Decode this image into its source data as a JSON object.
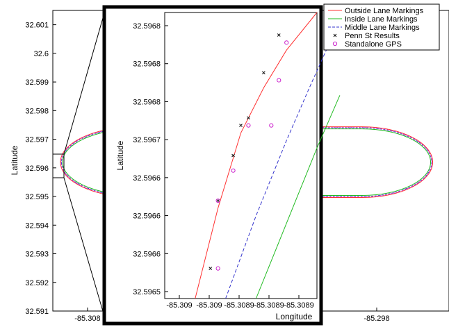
{
  "chart_data": [
    {
      "type": "line",
      "role": "main",
      "ylabel": "Latitude",
      "yticks": [
        "32.601",
        "32.6",
        "32.599",
        "32.598",
        "32.597",
        "32.596",
        "32.595",
        "32.594",
        "32.593",
        "32.592",
        "32.591"
      ],
      "xticks": [
        "-85.308",
        "-85.298"
      ],
      "ylim": [
        32.591,
        32.6015
      ],
      "xlim": [
        -85.3092,
        -85.2955
      ],
      "track": {
        "center_lat": 32.5962,
        "half_width_lat": 0.0012,
        "west_turn_lon": -85.3089,
        "east_turn_lon": -85.2961,
        "straight_west_lon": -85.3063,
        "straight_east_lon": -85.2985
      },
      "grid": false
    },
    {
      "type": "line",
      "role": "zoom-inset",
      "xlabel": "Longitude",
      "ylabel": "Latitude",
      "xticks": [
        "-85.309",
        "-85.309",
        "-85.3089",
        "-85.3089",
        "-85.3089"
      ],
      "yticks": [
        "32.5968",
        "32.5968",
        "32.5968",
        "32.5967",
        "32.5966",
        "32.5966",
        "32.5966",
        "32.5965"
      ],
      "xlim": [
        -85.30905,
        -85.30885
      ],
      "ylim": [
        32.59648,
        32.59686
      ],
      "series": [
        {
          "name": "Outside Lane Markings",
          "style": "solid",
          "color": "#ff3030",
          "x": [
            -85.30901,
            -85.30898,
            -85.30895,
            -85.30892,
            -85.30889,
            -85.30885
          ],
          "y": [
            32.59648,
            32.5966,
            32.5967,
            32.59676,
            32.59681,
            32.59686
          ]
        },
        {
          "name": "Inside Lane Markings",
          "style": "solid",
          "color": "#22bb22",
          "x": [
            -85.30893,
            -85.30889,
            -85.30885,
            -85.30882
          ],
          "y": [
            32.59648,
            32.59658,
            32.59668,
            32.59675
          ]
        },
        {
          "name": "Middle Lane Markings",
          "style": "dashed",
          "color": "#3333cc",
          "x": [
            -85.30897,
            -85.30893,
            -85.30889,
            -85.30886,
            -85.30882
          ],
          "y": [
            32.59648,
            32.59659,
            32.59669,
            32.59676,
            32.59685
          ]
        },
        {
          "name": "Penn St Results",
          "marker": "x",
          "color": "#111111",
          "x": [
            -85.30899,
            -85.30898,
            -85.30896,
            -85.30895,
            -85.30894,
            -85.30892,
            -85.3089
          ],
          "y": [
            32.59652,
            32.59661,
            32.59667,
            32.59671,
            32.59672,
            32.59678,
            32.59683
          ]
        },
        {
          "name": "Standalone GPS",
          "marker": "o",
          "color": "#cc22cc",
          "x": [
            -85.30898,
            -85.30898,
            -85.30896,
            -85.30894,
            -85.30891,
            -85.3089,
            -85.30889
          ],
          "y": [
            32.59652,
            32.59661,
            32.59665,
            32.59671,
            32.59671,
            32.59677,
            32.59682
          ]
        }
      ],
      "legend_position": "top-right",
      "grid": false
    }
  ]
}
